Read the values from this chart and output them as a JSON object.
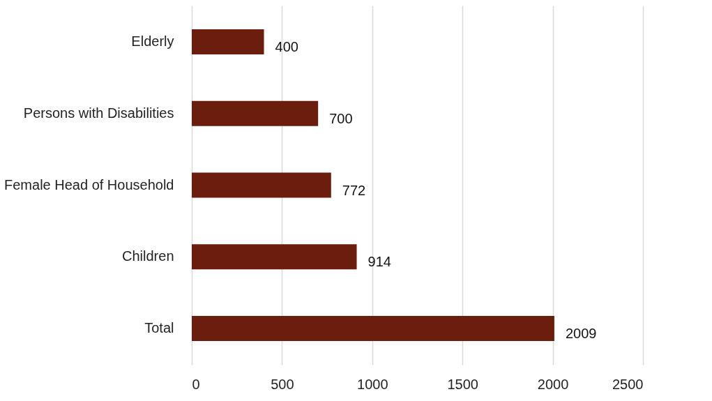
{
  "chart_data": {
    "type": "bar",
    "orientation": "horizontal",
    "categories": [
      "Elderly",
      "Persons with Disabilities",
      "Female Head of Household",
      "Children",
      "Total"
    ],
    "values": [
      400,
      700,
      772,
      914,
      2009
    ],
    "color": "#6b1e0e",
    "xlim": [
      0,
      2500
    ],
    "xticks": [
      0,
      500,
      1000,
      1500,
      2000,
      2500
    ],
    "grid": "x",
    "data_labels": true
  }
}
